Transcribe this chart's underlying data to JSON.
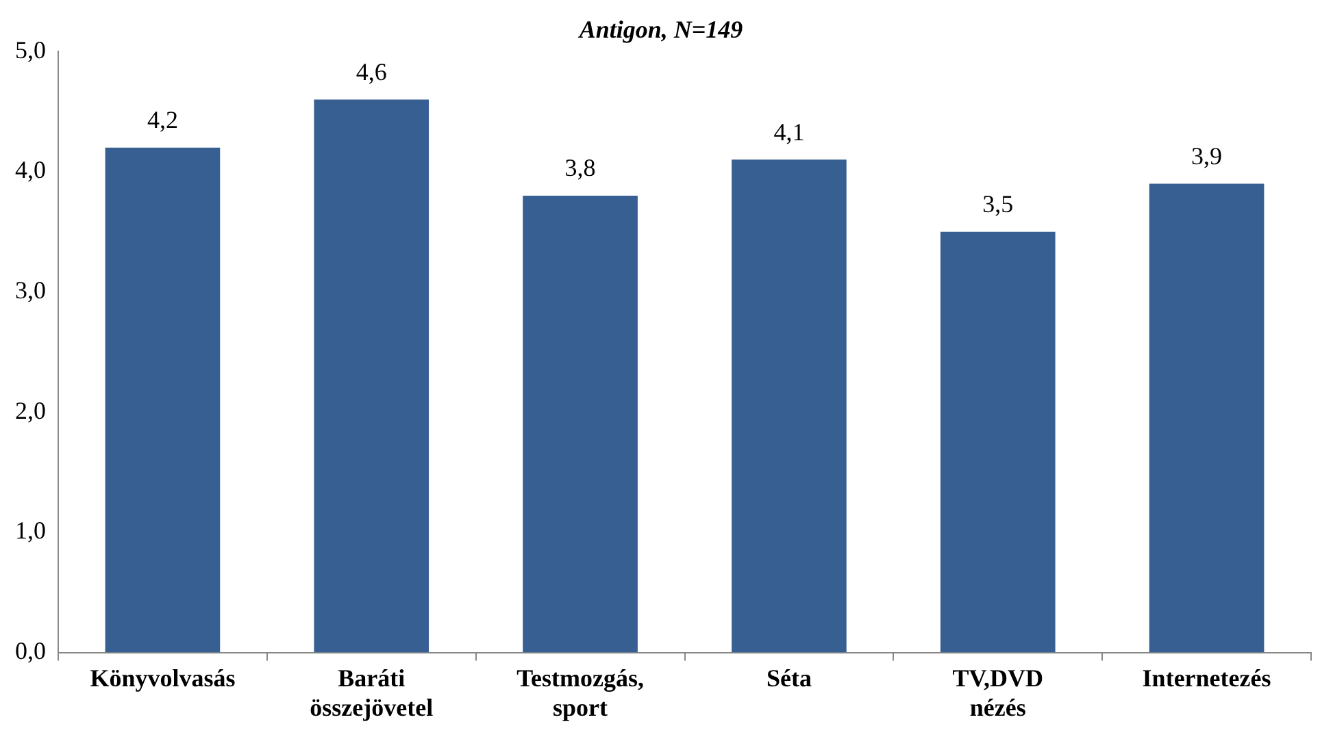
{
  "chart_data": {
    "type": "bar",
    "title": "Antigon, N=149",
    "categories": [
      "Könyvolvasás",
      "Baráti összejövetel",
      "Testmozgás, sport",
      "Séta",
      "TV,DVD nézés",
      "Internetezés"
    ],
    "values": [
      4.2,
      4.6,
      3.8,
      4.1,
      3.5,
      3.9
    ],
    "value_labels": [
      "4,2",
      "4,6",
      "3,8",
      "4,1",
      "3,5",
      "3,9"
    ],
    "color": "#375f91",
    "ylim": [
      0,
      5
    ],
    "yticks": [
      {
        "value": 0,
        "label": "0,0"
      },
      {
        "value": 1,
        "label": "1,0"
      },
      {
        "value": 2,
        "label": "2,0"
      },
      {
        "value": 3,
        "label": "3,0"
      },
      {
        "value": 4,
        "label": "4,0"
      },
      {
        "value": 5,
        "label": "5,0"
      }
    ],
    "grid": false,
    "legend": false
  }
}
